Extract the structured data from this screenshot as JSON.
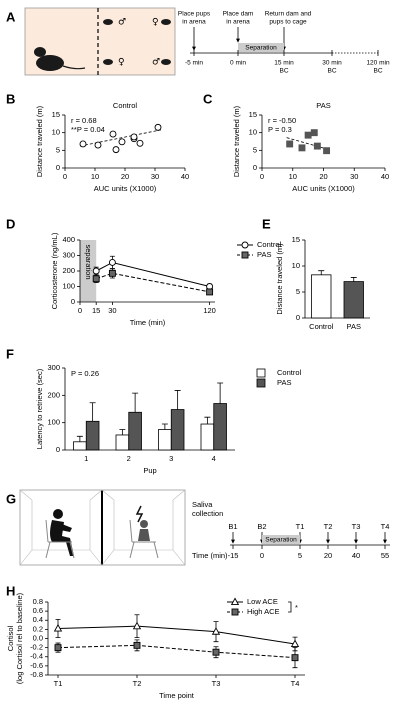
{
  "diagrams": [
    {
      "panel": "A",
      "sexes": [
        "♂",
        "♀",
        "♀",
        "♂"
      ],
      "steps": [
        [
          "Place pups",
          "in arena"
        ],
        [
          "Place dam",
          "in arena"
        ],
        [
          "Return dam and",
          "pups to cage"
        ]
      ],
      "period": "Separation",
      "times": [
        "-5 min",
        "0 min",
        "15 min",
        "30 min",
        "120 min"
      ],
      "marks": [
        "BC",
        "BC",
        "BC"
      ]
    },
    {
      "panel": "G",
      "heading": [
        "Saliva",
        "collection"
      ],
      "samples": [
        "B1",
        "B2",
        "T1",
        "T2",
        "T3",
        "T4"
      ],
      "period": "Separation",
      "axis_label": "Time (min)",
      "times": [
        "-15",
        "0",
        "5",
        "20",
        "40",
        "55"
      ]
    }
  ],
  "chart_data": [
    {
      "panel": "B",
      "type": "scatter",
      "title": "Control",
      "annotations": [
        "r = 0.68",
        "**P = 0.04"
      ],
      "x_label": "AUC units (X1000)",
      "y_label": "Distance traveled (m)",
      "xlim": [
        0,
        40
      ],
      "xticks": [
        0,
        10,
        20,
        30,
        40
      ],
      "ylim": [
        0,
        15
      ],
      "yticks": [
        0,
        5,
        10,
        15
      ],
      "series": [
        {
          "marker": "circle",
          "color": "#000000",
          "marker_fill": "#ffffff",
          "x": [
            6,
            11,
            16,
            17,
            19,
            23,
            23,
            25,
            31
          ],
          "y": [
            6.8,
            6.5,
            9.6,
            5.2,
            7.4,
            8.3,
            8.8,
            7,
            11.5
          ]
        }
      ],
      "trendline": {
        "x": [
          5,
          32
        ],
        "y": [
          6.2,
          10.8
        ]
      }
    },
    {
      "panel": "C",
      "type": "scatter",
      "title": "PAS",
      "annotations": [
        "r = -0.50",
        "P = 0.3"
      ],
      "x_label": "AUC units (X1000)",
      "y_label": "Distance traveled (m)",
      "xlim": [
        0,
        40
      ],
      "xticks": [
        0,
        10,
        20,
        30,
        40
      ],
      "ylim": [
        0,
        15
      ],
      "yticks": [
        0,
        5,
        10,
        15
      ],
      "series": [
        {
          "marker": "square",
          "color": "#555555",
          "marker_fill": "#555555",
          "x": [
            9,
            13,
            15,
            17,
            18,
            21
          ],
          "y": [
            6.8,
            5.7,
            9.3,
            10,
            6.2,
            4.9
          ]
        }
      ],
      "trendline": {
        "x": [
          8,
          21
        ],
        "y": [
          8.6,
          5.4
        ]
      }
    },
    {
      "panel": "D",
      "type": "line",
      "x_label": "Time (min)",
      "y_label": "Corticosterone (ng/mL)",
      "x": [
        15,
        30,
        120
      ],
      "xlim": [
        0,
        125
      ],
      "xticks": [
        0,
        15,
        30,
        120
      ],
      "ylim": [
        0,
        400
      ],
      "yticks": [
        0,
        100,
        200,
        300,
        400
      ],
      "shade": {
        "x": [
          0,
          15
        ],
        "label": "separation",
        "color": "#cccccc"
      },
      "legend": "right",
      "series": [
        {
          "name": "Control",
          "marker": "circle",
          "color": "#000000",
          "marker_fill": "#ffffff",
          "dashed": false,
          "values": [
            200,
            255,
            100
          ],
          "errors": [
            25,
            40,
            15
          ]
        },
        {
          "name": "PAS",
          "marker": "square",
          "color": "#000000",
          "marker_fill": "#666666",
          "dashed": true,
          "values": [
            150,
            185,
            65
          ],
          "errors": [
            25,
            30,
            10
          ]
        }
      ]
    },
    {
      "panel": "E",
      "type": "bar",
      "y_label": "Distance traveled (m)",
      "categories": [
        "Control",
        "PAS"
      ],
      "values": [
        8.3,
        7.0
      ],
      "errors": [
        0.8,
        0.8
      ],
      "colors": [
        "#ffffff",
        "#555555"
      ],
      "ylim": [
        0,
        15
      ],
      "yticks": [
        0,
        5,
        10,
        15
      ]
    },
    {
      "panel": "F",
      "type": "bar",
      "annotations": [
        "P = 0.26"
      ],
      "x_label": "Pup",
      "y_label": "Latency to retrieve (sec)",
      "categories": [
        "1",
        "2",
        "3",
        "4"
      ],
      "ylim": [
        0,
        300
      ],
      "yticks": [
        0,
        100,
        200,
        300
      ],
      "legend": "right",
      "series": [
        {
          "name": "Control",
          "color": "#ffffff",
          "values": [
            30,
            55,
            75,
            95
          ],
          "errors": [
            20,
            20,
            20,
            25
          ]
        },
        {
          "name": "PAS",
          "color": "#555555",
          "values": [
            105,
            138,
            148,
            170
          ],
          "errors": [
            68,
            70,
            70,
            75
          ]
        }
      ]
    },
    {
      "panel": "H",
      "type": "line",
      "x_label": "Time point",
      "y_label": "Cortisol",
      "y_label_2": "(log Cortisol rel to baseline)",
      "categories": [
        "T1",
        "T2",
        "T3",
        "T4"
      ],
      "ylim": [
        -0.8,
        0.8
      ],
      "yticks": [
        -0.8,
        -0.6,
        -0.4,
        -0.2,
        {
          "value": 0,
          "label": "0.0"
        },
        0.2,
        0.4,
        0.6,
        0.8
      ],
      "legend": "upper right",
      "significance": "*",
      "series": [
        {
          "name": "Low ACE",
          "marker": "triangle",
          "color": "#000000",
          "marker_fill": "#ffffff",
          "dashed": false,
          "values": [
            0.22,
            0.27,
            0.15,
            -0.12
          ],
          "errors": [
            0.2,
            0.25,
            0.22,
            0.15
          ]
        },
        {
          "name": "High ACE",
          "marker": "square",
          "color": "#000000",
          "marker_fill": "#666666",
          "dashed": true,
          "values": [
            -0.2,
            -0.15,
            -0.3,
            -0.42
          ],
          "errors": [
            0.1,
            0.12,
            0.12,
            0.22
          ]
        }
      ]
    }
  ]
}
